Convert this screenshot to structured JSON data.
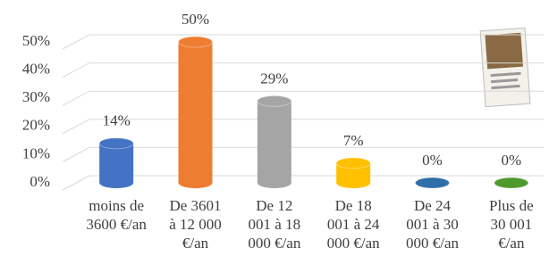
{
  "chart_data": {
    "type": "bar",
    "categories": [
      [
        "moins de",
        "3600 €/an"
      ],
      [
        "De 3601",
        "à 12 000",
        "€/an"
      ],
      [
        "De 12",
        "001 à 18",
        "000 €/an"
      ],
      [
        "De 18",
        "001 à 24",
        "000 €/an"
      ],
      [
        "De 24",
        "001 à 30",
        "000 €/an"
      ],
      [
        "Plus de",
        "30 001",
        "€/an"
      ]
    ],
    "values": [
      14,
      50,
      29,
      7,
      0,
      0
    ],
    "value_labels": [
      "14%",
      "50%",
      "29%",
      "7%",
      "0%",
      "0%"
    ],
    "colors": [
      "#4472c4",
      "#ed7d31",
      "#a5a5a5",
      "#ffc000",
      "#2e6fa8",
      "#4f9a2e"
    ],
    "ylim": [
      0,
      50
    ],
    "yticks": [
      {
        "value": 0,
        "label": "0%"
      },
      {
        "value": 10,
        "label": "10%"
      },
      {
        "value": 20,
        "label": "20%"
      },
      {
        "value": 30,
        "label": "30%"
      },
      {
        "value": 40,
        "label": "40%"
      },
      {
        "value": 50,
        "label": "50%"
      }
    ],
    "grid": true
  }
}
